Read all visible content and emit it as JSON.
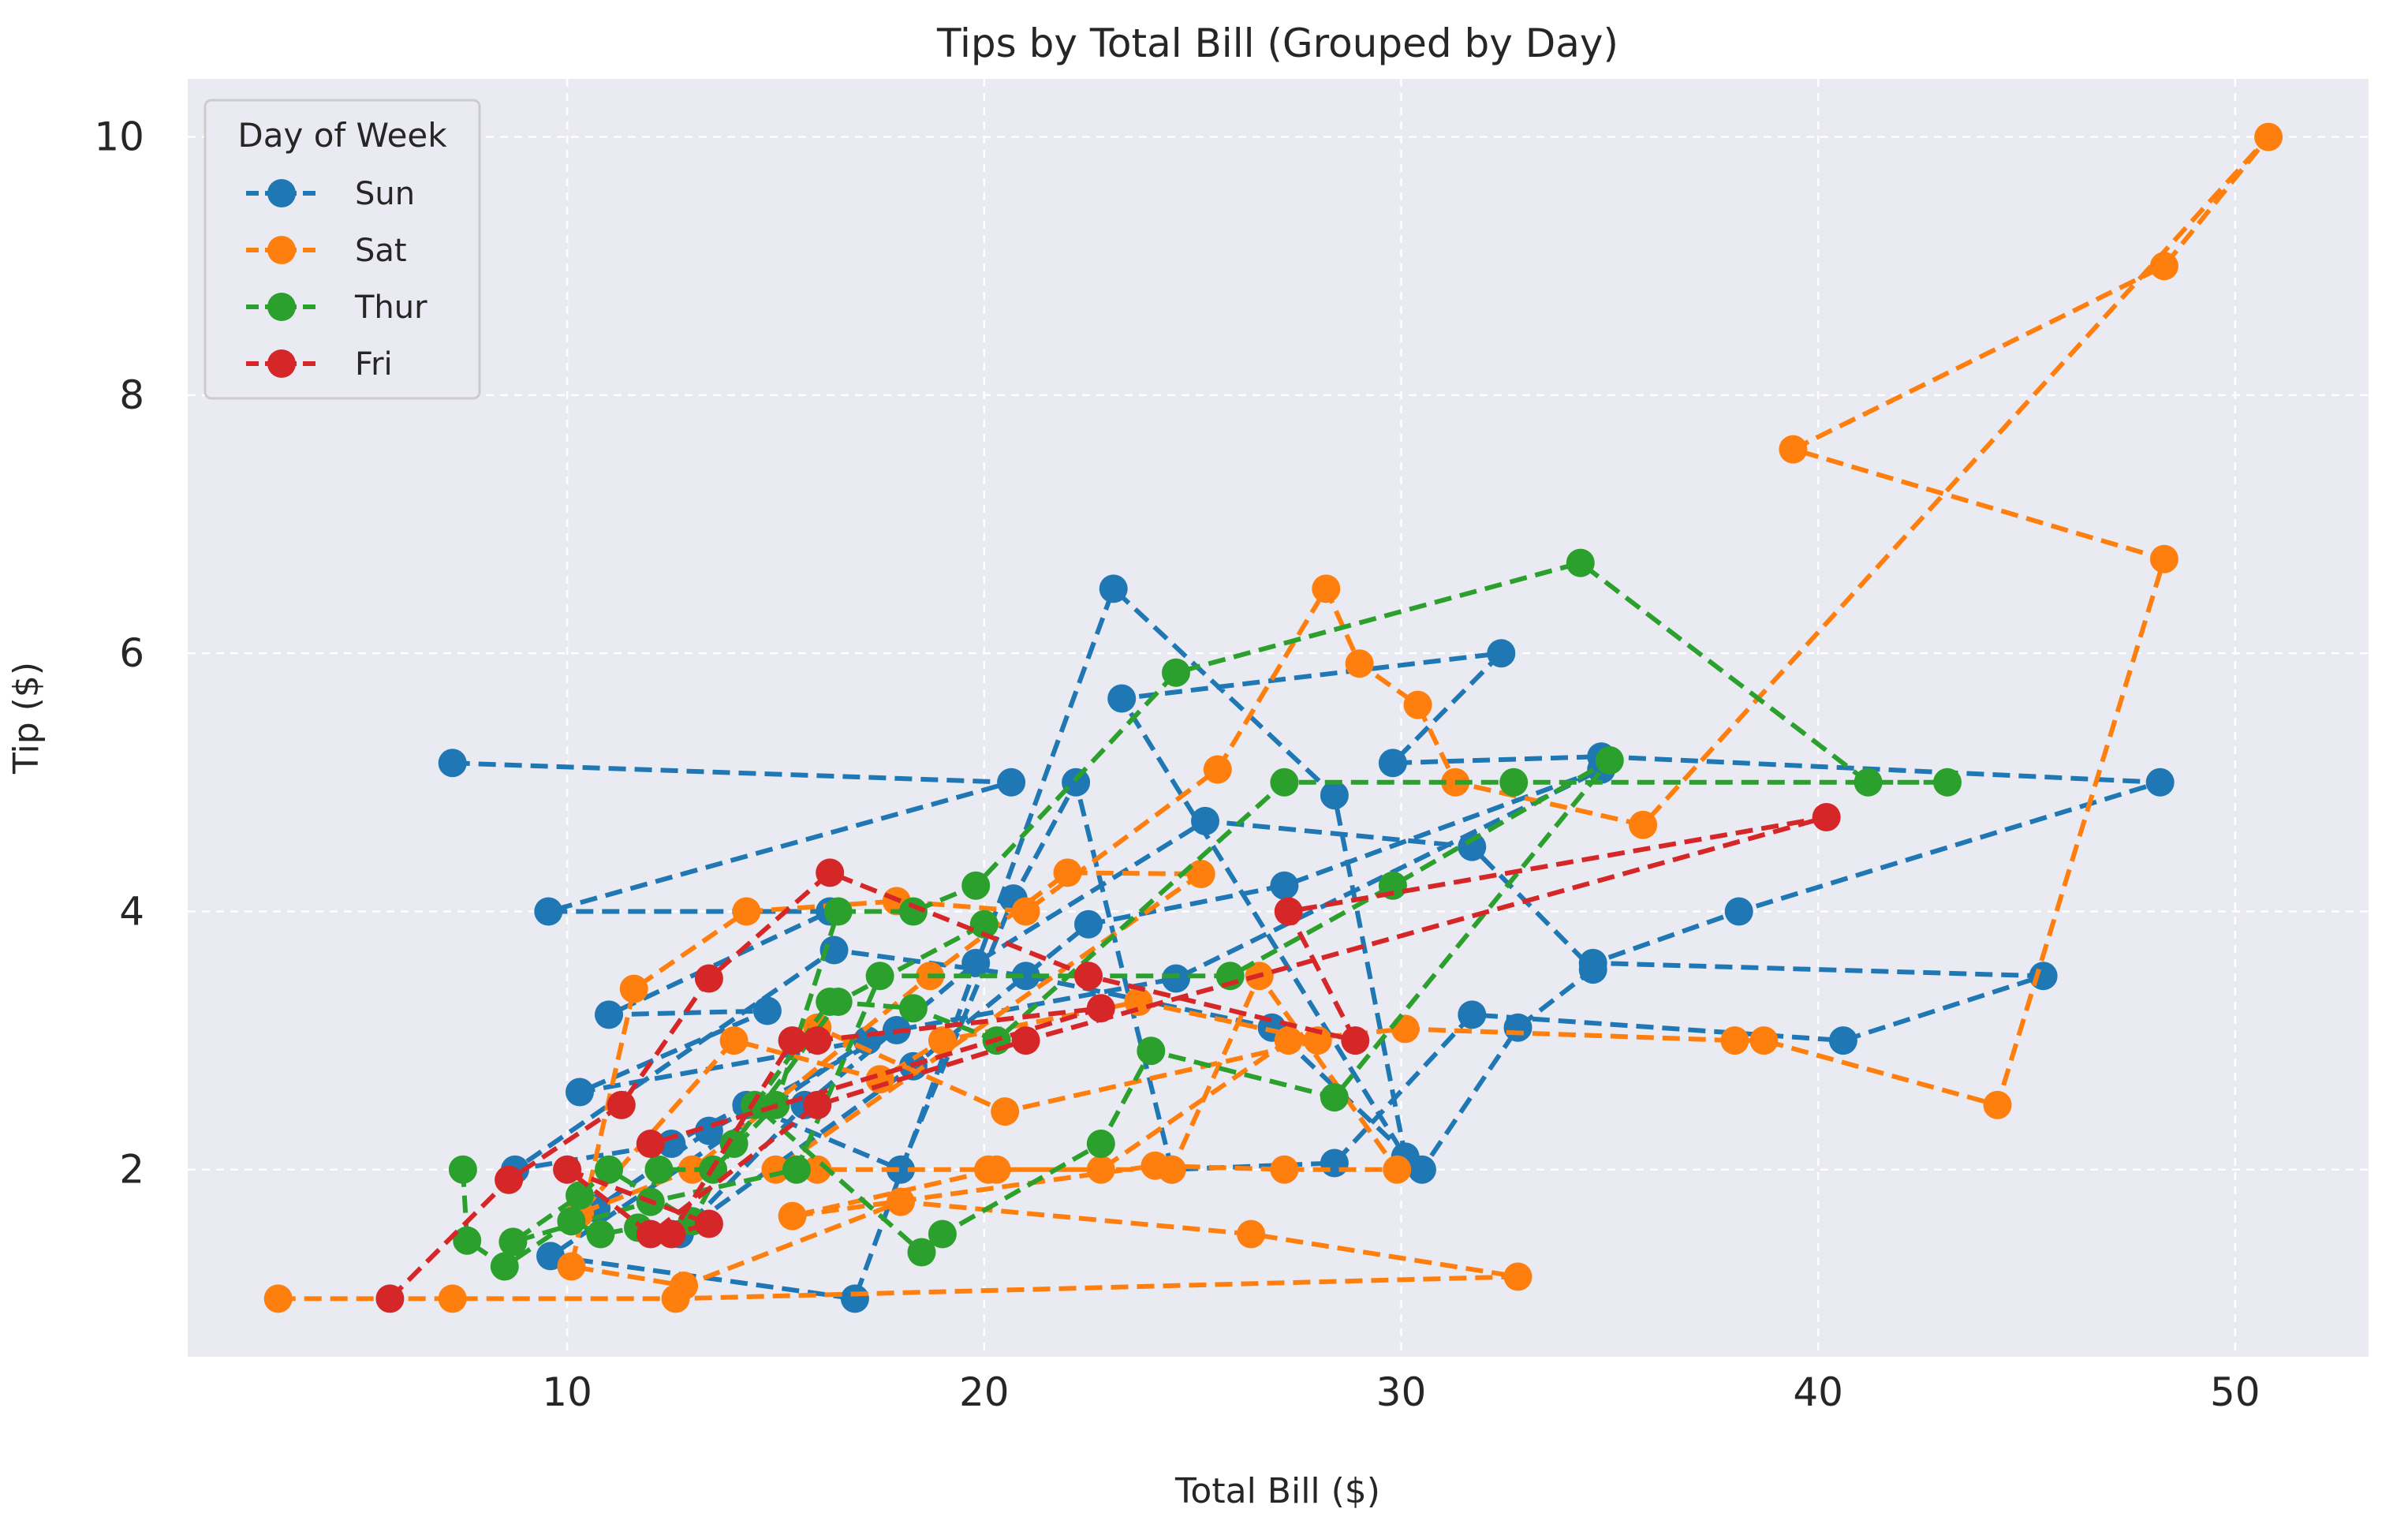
{
  "chart_data": {
    "type": "line",
    "title": "Tips by Total Bill (Grouped by Day)",
    "xlabel": "Total Bill ($)",
    "ylabel": "Tip ($)",
    "xlim": [
      0.9,
      53.2
    ],
    "ylim": [
      0.55,
      10.45
    ],
    "xticks": [
      10,
      20,
      30,
      40,
      50
    ],
    "yticks": [
      2,
      4,
      6,
      8,
      10
    ],
    "grid": true,
    "line_style": "dashed",
    "marker": "circle",
    "legend": {
      "title": "Day of Week",
      "position": "top-left"
    },
    "series": [
      {
        "name": "Sun",
        "color": "#1f77b4",
        "points": [
          [
            7.25,
            5.15
          ],
          [
            20.65,
            5.0
          ],
          [
            9.55,
            4.0
          ],
          [
            16.3,
            4.0
          ],
          [
            11.0,
            3.2
          ],
          [
            14.8,
            3.23
          ],
          [
            10.3,
            2.6
          ],
          [
            17.2,
            3.0
          ],
          [
            9.6,
            1.33
          ],
          [
            16.9,
            1.0
          ],
          [
            23.1,
            6.5
          ],
          [
            28.4,
            4.9
          ],
          [
            30.1,
            2.1
          ],
          [
            23.3,
            5.65
          ],
          [
            32.4,
            6.0
          ],
          [
            29.8,
            5.15
          ],
          [
            34.8,
            5.2
          ],
          [
            48.2,
            5.0
          ],
          [
            38.1,
            4.0
          ],
          [
            34.6,
            3.6
          ],
          [
            45.4,
            3.5
          ],
          [
            40.6,
            3.0
          ],
          [
            31.7,
            3.2
          ],
          [
            28.4,
            2.05
          ],
          [
            24.5,
            2.0
          ],
          [
            22.2,
            5.0
          ],
          [
            20.7,
            4.1
          ],
          [
            18.0,
            2.0
          ],
          [
            14.3,
            2.5
          ],
          [
            12.5,
            2.2
          ],
          [
            8.75,
            2.0
          ],
          [
            16.4,
            3.7
          ],
          [
            21.0,
            3.5
          ],
          [
            26.9,
            3.1
          ],
          [
            30.5,
            2.0
          ],
          [
            32.8,
            3.1
          ],
          [
            34.6,
            3.55
          ],
          [
            31.7,
            4.5
          ],
          [
            25.3,
            4.7
          ],
          [
            19.8,
            3.6
          ],
          [
            15.7,
            2.5
          ],
          [
            12.7,
            1.5
          ],
          [
            18.3,
            2.8
          ],
          [
            22.5,
            3.9
          ],
          [
            27.2,
            4.2
          ],
          [
            34.8,
            5.1
          ],
          [
            24.6,
            3.48
          ],
          [
            17.9,
            3.08
          ],
          [
            13.4,
            2.3
          ],
          [
            10.7,
            1.7
          ]
        ]
      },
      {
        "name": "Sat",
        "color": "#ff7f0e",
        "points": [
          [
            3.07,
            1.0
          ],
          [
            7.25,
            1.0
          ],
          [
            12.6,
            1.0
          ],
          [
            32.8,
            1.17
          ],
          [
            26.4,
            1.5
          ],
          [
            18.0,
            1.75
          ],
          [
            12.8,
            1.1
          ],
          [
            10.1,
            1.25
          ],
          [
            11.6,
            3.4
          ],
          [
            14.3,
            4.0
          ],
          [
            17.9,
            4.08
          ],
          [
            21.0,
            4.0
          ],
          [
            25.6,
            5.1
          ],
          [
            28.2,
            6.5
          ],
          [
            29.0,
            5.92
          ],
          [
            30.4,
            5.6
          ],
          [
            31.3,
            5.0
          ],
          [
            35.8,
            4.67
          ],
          [
            50.8,
            10.0
          ],
          [
            48.3,
            9.0
          ],
          [
            39.4,
            7.58
          ],
          [
            48.3,
            6.73
          ],
          [
            44.3,
            2.5
          ],
          [
            38.7,
            3.0
          ],
          [
            38.0,
            3.0
          ],
          [
            30.1,
            3.09
          ],
          [
            27.3,
            3.0
          ],
          [
            22.8,
            2.0
          ],
          [
            20.3,
            2.0
          ],
          [
            15.4,
            1.64
          ],
          [
            24.1,
            2.03
          ],
          [
            27.2,
            2.0
          ],
          [
            29.9,
            2.0
          ],
          [
            26.6,
            3.5
          ],
          [
            24.5,
            2.0
          ],
          [
            20.1,
            2.0
          ],
          [
            16.0,
            2.0
          ],
          [
            15.0,
            2.0
          ],
          [
            25.2,
            4.29
          ],
          [
            22.0,
            4.3
          ],
          [
            18.7,
            3.5
          ],
          [
            13.0,
            2.0
          ],
          [
            10.3,
            1.66
          ],
          [
            14.0,
            3.0
          ],
          [
            17.5,
            2.7
          ],
          [
            19.0,
            3.0
          ],
          [
            23.7,
            3.3
          ],
          [
            28.0,
            3.0
          ],
          [
            20.5,
            2.45
          ],
          [
            16.0,
            3.1
          ]
        ]
      },
      {
        "name": "Thur",
        "color": "#2ca02c",
        "points": [
          [
            7.5,
            2.0
          ],
          [
            7.6,
            1.45
          ],
          [
            8.5,
            1.25
          ],
          [
            10.1,
            1.6
          ],
          [
            10.8,
            1.5
          ],
          [
            11.7,
            1.55
          ],
          [
            12.2,
            2.0
          ],
          [
            13.5,
            2.0
          ],
          [
            15.0,
            2.5
          ],
          [
            16.5,
            4.0
          ],
          [
            18.3,
            4.0
          ],
          [
            19.8,
            4.2
          ],
          [
            24.6,
            5.85
          ],
          [
            34.3,
            6.7
          ],
          [
            41.2,
            5.0
          ],
          [
            43.1,
            5.0
          ],
          [
            32.7,
            5.0
          ],
          [
            27.2,
            5.0
          ],
          [
            20.3,
            3.0
          ],
          [
            18.3,
            3.25
          ],
          [
            16.3,
            3.3
          ],
          [
            14.5,
            2.5
          ],
          [
            18.5,
            1.36
          ],
          [
            19.0,
            1.5
          ],
          [
            22.8,
            2.2
          ],
          [
            24.0,
            2.92
          ],
          [
            28.4,
            2.56
          ],
          [
            35.0,
            5.17
          ],
          [
            29.8,
            4.2
          ],
          [
            25.9,
            3.5
          ],
          [
            17.5,
            3.5
          ],
          [
            15.5,
            2.0
          ],
          [
            12.0,
            1.75
          ],
          [
            8.7,
            1.44
          ],
          [
            10.3,
            1.8
          ],
          [
            11.0,
            2.0
          ],
          [
            13.0,
            1.6
          ],
          [
            14.0,
            2.2
          ],
          [
            16.5,
            3.3
          ],
          [
            20.0,
            3.9
          ]
        ]
      },
      {
        "name": "Fri",
        "color": "#d62728",
        "points": [
          [
            5.75,
            1.0
          ],
          [
            8.6,
            1.92
          ],
          [
            11.3,
            2.5
          ],
          [
            13.4,
            3.48
          ],
          [
            16.3,
            4.3
          ],
          [
            22.5,
            3.5
          ],
          [
            28.9,
            3.0
          ],
          [
            27.3,
            4.0
          ],
          [
            40.2,
            4.73
          ],
          [
            21.0,
            3.0
          ],
          [
            16.0,
            2.5
          ],
          [
            12.0,
            1.5
          ],
          [
            10.0,
            2.0
          ],
          [
            13.4,
            1.58
          ],
          [
            12.5,
            1.5
          ],
          [
            15.4,
            3.0
          ],
          [
            16.0,
            3.0
          ],
          [
            22.8,
            3.25
          ],
          [
            12.0,
            2.2
          ]
        ]
      }
    ]
  }
}
